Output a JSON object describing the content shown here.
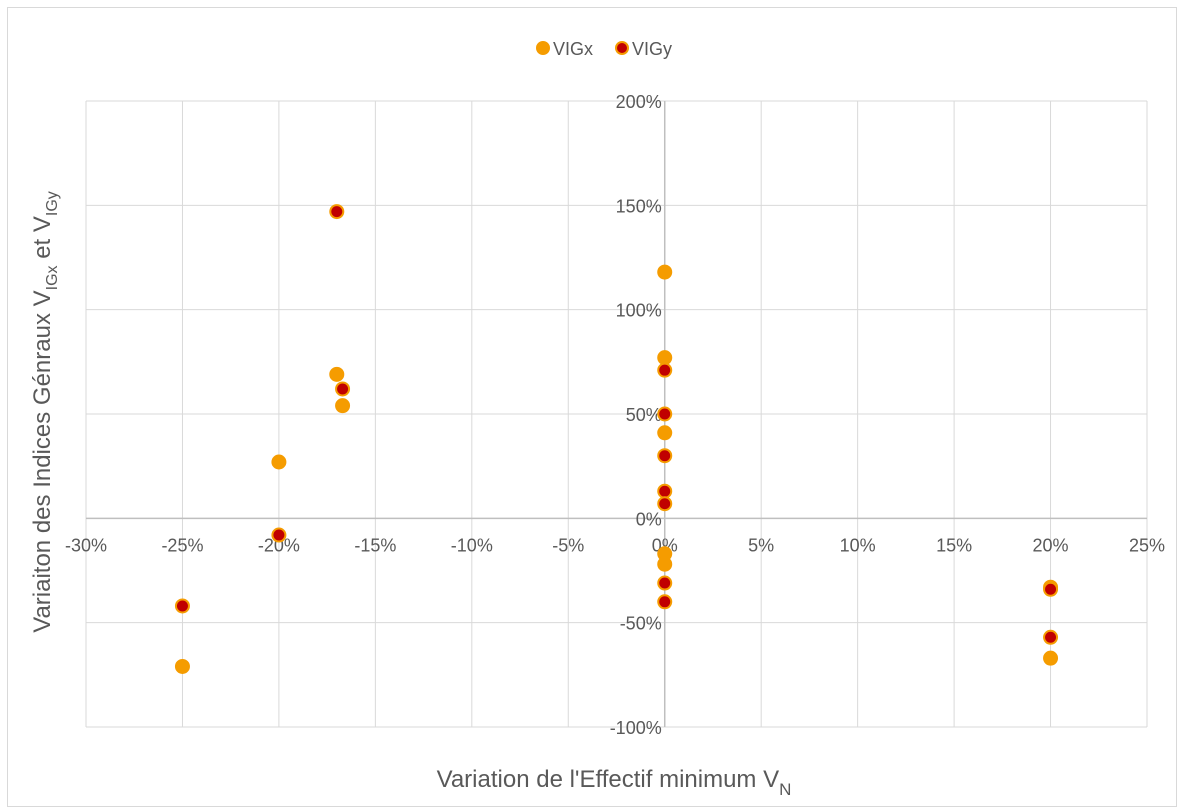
{
  "chart_data": {
    "type": "scatter",
    "xlabel": "Variation de l'Effectif minimum V",
    "xlabel_sub": "N",
    "ylabel_parts": [
      "Variaiton des Indices Génraux V",
      "IGx",
      " et V",
      "IGy"
    ],
    "xlim": [
      -0.3,
      0.25
    ],
    "ylim": [
      -1.0,
      2.0
    ],
    "x_ticks": [
      -0.3,
      -0.25,
      -0.2,
      -0.15,
      -0.1,
      -0.05,
      0.0,
      0.05,
      0.1,
      0.15,
      0.2,
      0.25
    ],
    "y_ticks": [
      -1.0,
      -0.5,
      0.0,
      0.5,
      1.0,
      1.5,
      2.0
    ],
    "x_tick_labels": [
      "-30%",
      "-25%",
      "-20%",
      "-15%",
      "-10%",
      "-5%",
      "0%",
      "5%",
      "10%",
      "15%",
      "20%",
      "25%"
    ],
    "y_tick_labels": [
      "-100%",
      "-50%",
      "0%",
      "50%",
      "100%",
      "150%",
      "200%"
    ],
    "grid": true,
    "legend_position": "top-center",
    "series": [
      {
        "name": "VIGx",
        "color": "#f59c00",
        "marker_fill": "#f59c00",
        "marker_stroke": "#f59c00",
        "points": [
          {
            "x": -0.25,
            "y": -0.71
          },
          {
            "x": -0.2,
            "y": 0.27
          },
          {
            "x": -0.17,
            "y": 0.69
          },
          {
            "x": -0.167,
            "y": 0.54
          },
          {
            "x": 0.0,
            "y": 1.18
          },
          {
            "x": 0.0,
            "y": 0.77
          },
          {
            "x": 0.0,
            "y": 0.41
          },
          {
            "x": 0.0,
            "y": -0.17
          },
          {
            "x": 0.0,
            "y": -0.22
          },
          {
            "x": 0.2,
            "y": -0.33
          },
          {
            "x": 0.2,
            "y": -0.67
          }
        ]
      },
      {
        "name": "VIGy",
        "color": "#c00000",
        "marker_fill": "#c00000",
        "marker_stroke": "#f59c00",
        "points": [
          {
            "x": -0.25,
            "y": -0.42
          },
          {
            "x": -0.2,
            "y": -0.08
          },
          {
            "x": -0.17,
            "y": 1.47
          },
          {
            "x": -0.167,
            "y": 0.62
          },
          {
            "x": 0.0,
            "y": 0.71
          },
          {
            "x": 0.0,
            "y": 0.5
          },
          {
            "x": 0.0,
            "y": 0.3
          },
          {
            "x": 0.0,
            "y": 0.13
          },
          {
            "x": 0.0,
            "y": 0.07
          },
          {
            "x": 0.0,
            "y": -0.31
          },
          {
            "x": 0.0,
            "y": -0.4
          },
          {
            "x": 0.2,
            "y": -0.34
          },
          {
            "x": 0.2,
            "y": -0.57
          }
        ]
      }
    ]
  }
}
